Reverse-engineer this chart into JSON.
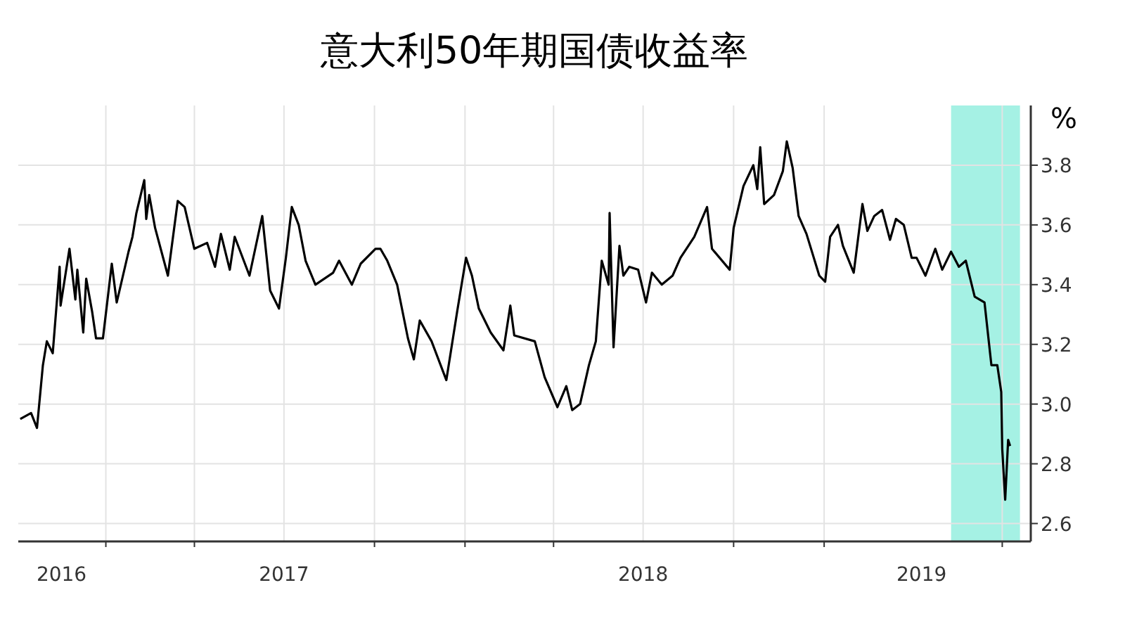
{
  "chart_data": {
    "type": "line",
    "title": "意大利50年期国债收益率",
    "ylabel": "%",
    "x": [
      "2016-10-06",
      "2016-10-17",
      "2016-10-23",
      "2016-10-29",
      "2016-11-02",
      "2016-11-08",
      "2016-11-15",
      "2016-11-16",
      "2016-11-25",
      "2016-12-01",
      "2016-12-03",
      "2016-12-09",
      "2016-12-12",
      "2016-12-18",
      "2016-12-22",
      "2016-12-29",
      "2017-01-07",
      "2017-01-12",
      "2017-01-24",
      "2017-01-28",
      "2017-02-01",
      "2017-02-09",
      "2017-02-11",
      "2017-02-14",
      "2017-02-20",
      "2017-03-05",
      "2017-03-15",
      "2017-03-22",
      "2017-04-01",
      "2017-04-14",
      "2017-04-22",
      "2017-04-28",
      "2017-05-07",
      "2017-05-12",
      "2017-05-27",
      "2017-06-09",
      "2017-06-17",
      "2017-06-26",
      "2017-07-03",
      "2017-07-09",
      "2017-07-16",
      "2017-07-23",
      "2017-08-02",
      "2017-08-20",
      "2017-08-26",
      "2017-09-08",
      "2017-09-17",
      "2017-10-02",
      "2017-10-07",
      "2017-10-14",
      "2017-10-24",
      "2017-11-04",
      "2017-11-10",
      "2017-11-16",
      "2017-11-28",
      "2017-12-13",
      "2017-12-24",
      "2018-01-02",
      "2018-01-08",
      "2018-01-15",
      "2018-01-27",
      "2018-02-09",
      "2018-02-16",
      "2018-02-20",
      "2018-03-13",
      "2018-03-23",
      "2018-04-05",
      "2018-04-14",
      "2018-04-20",
      "2018-04-28",
      "2018-05-07",
      "2018-05-14",
      "2018-05-20",
      "2018-05-27",
      "2018-05-28",
      "2018-06-01",
      "2018-06-07",
      "2018-06-11",
      "2018-06-17",
      "2018-06-26",
      "2018-07-04",
      "2018-07-10",
      "2018-07-20",
      "2018-07-31",
      "2018-08-08",
      "2018-08-22",
      "2018-09-04",
      "2018-09-09",
      "2018-09-27",
      "2018-10-01",
      "2018-10-11",
      "2018-10-21",
      "2018-10-25",
      "2018-10-28",
      "2018-11-01",
      "2018-11-11",
      "2018-11-20",
      "2018-11-24",
      "2018-11-30",
      "2018-12-06",
      "2018-12-14",
      "2018-12-27",
      "2019-01-02",
      "2019-01-07",
      "2019-01-15",
      "2019-01-20",
      "2019-01-31",
      "2019-02-09",
      "2019-02-14",
      "2019-02-21",
      "2019-03-01",
      "2019-03-09",
      "2019-03-15",
      "2019-03-23",
      "2019-03-31",
      "2019-04-05",
      "2019-04-14",
      "2019-04-24",
      "2019-05-01",
      "2019-05-10",
      "2019-05-18",
      "2019-05-25",
      "2019-06-03",
      "2019-06-13",
      "2019-06-20",
      "2019-06-26",
      "2019-06-30",
      "2019-07-01",
      "2019-07-04",
      "2019-07-07",
      "2019-07-09"
    ],
    "series": [
      {
        "color": "#000000",
        "values": [
          2.95,
          2.97,
          2.92,
          3.13,
          3.21,
          3.17,
          3.46,
          3.33,
          3.52,
          3.35,
          3.45,
          3.24,
          3.42,
          3.31,
          3.22,
          3.22,
          3.47,
          3.34,
          3.51,
          3.56,
          3.64,
          3.75,
          3.62,
          3.7,
          3.59,
          3.43,
          3.68,
          3.66,
          3.52,
          3.54,
          3.46,
          3.57,
          3.45,
          3.56,
          3.43,
          3.63,
          3.38,
          3.32,
          3.49,
          3.66,
          3.6,
          3.48,
          3.4,
          3.44,
          3.48,
          3.4,
          3.47,
          3.52,
          3.52,
          3.48,
          3.4,
          3.22,
          3.15,
          3.28,
          3.21,
          3.08,
          3.31,
          3.49,
          3.43,
          3.32,
          3.24,
          3.18,
          3.33,
          3.23,
          3.21,
          3.09,
          2.99,
          3.06,
          2.98,
          3.0,
          3.13,
          3.21,
          3.48,
          3.4,
          3.64,
          3.19,
          3.53,
          3.43,
          3.46,
          3.45,
          3.34,
          3.44,
          3.4,
          3.43,
          3.49,
          3.56,
          3.66,
          3.52,
          3.45,
          3.59,
          3.73,
          3.8,
          3.72,
          3.86,
          3.67,
          3.7,
          3.78,
          3.88,
          3.79,
          3.63,
          3.57,
          3.43,
          3.41,
          3.56,
          3.6,
          3.53,
          3.44,
          3.67,
          3.58,
          3.63,
          3.65,
          3.55,
          3.62,
          3.6,
          3.49,
          3.49,
          3.43,
          3.52,
          3.45,
          3.51,
          3.46,
          3.48,
          3.36,
          3.34,
          3.13,
          3.13,
          3.04,
          2.85,
          2.68,
          2.88,
          2.86
        ]
      }
    ],
    "xlim": [
      "2016-10-04",
      "2019-07-30"
    ],
    "xticks": [
      {
        "value": "2016-11-17",
        "label": "2016"
      },
      {
        "value": "2017-01-01",
        "label": null
      },
      {
        "value": "2017-04-01",
        "label": null
      },
      {
        "value": "2017-07-01",
        "label": "2017"
      },
      {
        "value": "2017-10-01",
        "label": null
      },
      {
        "value": "2018-01-01",
        "label": null
      },
      {
        "value": "2018-04-01",
        "label": null
      },
      {
        "value": "2018-07-01",
        "label": "2018"
      },
      {
        "value": "2018-10-01",
        "label": null
      },
      {
        "value": "2019-01-01",
        "label": null
      },
      {
        "value": "2019-04-10",
        "label": "2019"
      },
      {
        "value": "2019-07-01",
        "label": null
      }
    ],
    "ylim": [
      2.54,
      4.0
    ],
    "yticks": [
      {
        "value": 2.6,
        "label": "2.6"
      },
      {
        "value": 2.8,
        "label": "2.8"
      },
      {
        "value": 3.0,
        "label": "3.0"
      },
      {
        "value": 3.2,
        "label": "3.2"
      },
      {
        "value": 3.4,
        "label": "3.4"
      },
      {
        "value": 3.6,
        "label": "3.6"
      },
      {
        "value": 3.8,
        "label": "3.8"
      }
    ],
    "bands": [
      {
        "axis": "x",
        "from": "2019-05-10",
        "to": "2019-07-19",
        "color": "#8eeedd"
      }
    ],
    "grid": true
  }
}
